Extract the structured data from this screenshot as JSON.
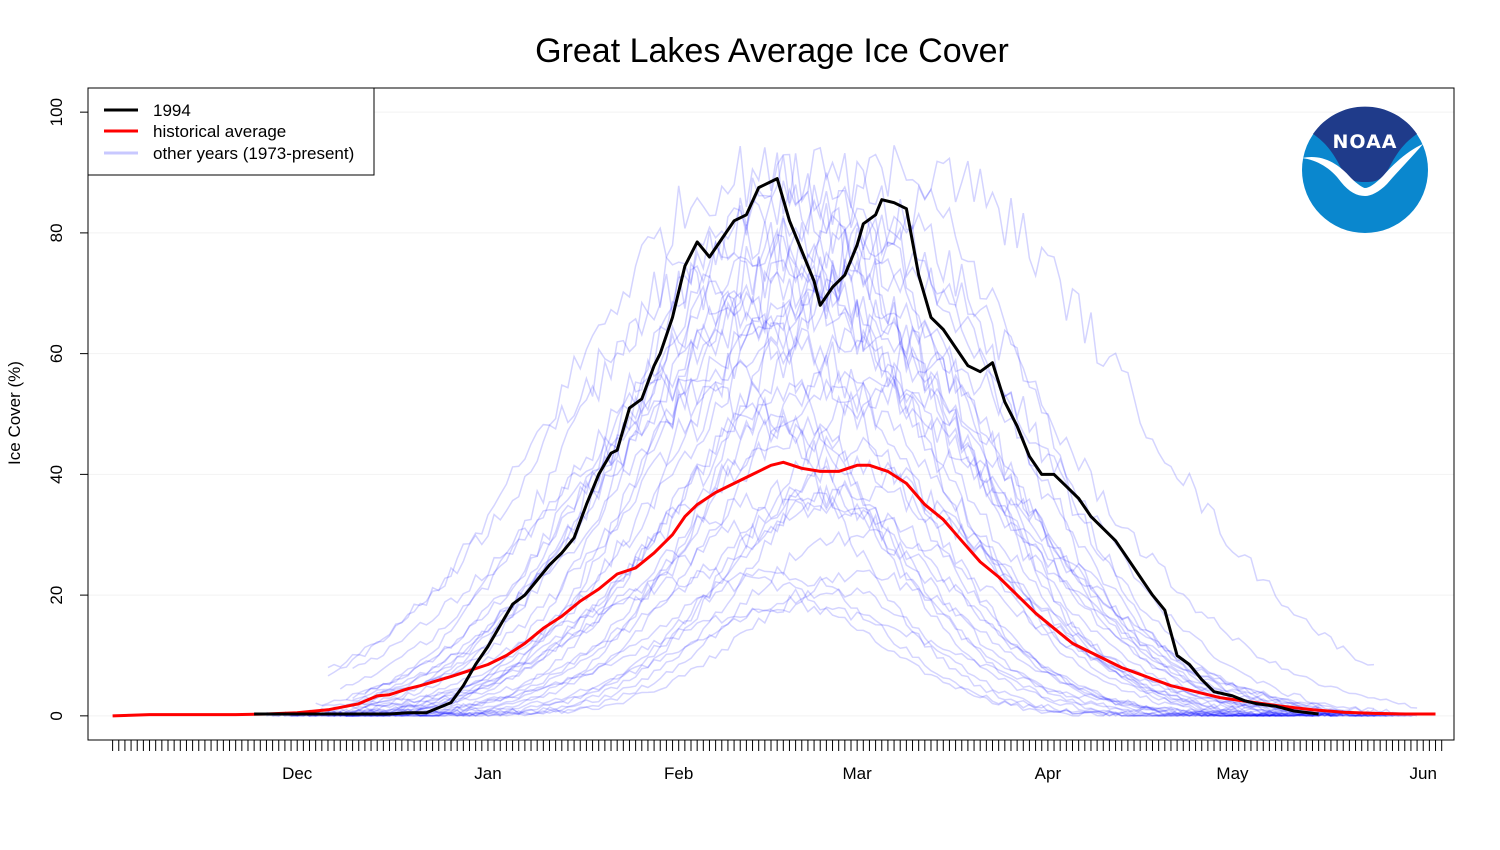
{
  "chart_data": {
    "type": "line",
    "title": "Great Lakes Average Ice Cover",
    "xlabel": "",
    "ylabel": "Ice Cover (%)",
    "x_unit": "days since Nov 1",
    "xlim": [
      -4,
      218
    ],
    "ylim": [
      -4,
      104
    ],
    "y_ticks": [
      0,
      20,
      40,
      60,
      80,
      100
    ],
    "x_ticks": [
      {
        "label": "Dec",
        "day": 30
      },
      {
        "label": "Jan",
        "day": 61
      },
      {
        "label": "Feb",
        "day": 92
      },
      {
        "label": "Mar",
        "day": 121
      },
      {
        "label": "Apr",
        "day": 152
      },
      {
        "label": "May",
        "day": 182
      },
      {
        "label": "Jun",
        "day": 213
      }
    ],
    "minor_tick_range": [
      0,
      216
    ],
    "grid": "horizontal",
    "legend": {
      "position": "top-left",
      "entries": [
        {
          "label": "1994",
          "color": "#000000"
        },
        {
          "label": "historical average",
          "color": "#ff0000"
        },
        {
          "label": "other years (1973-present)",
          "color": "#c8c8ff"
        }
      ]
    },
    "series": [
      {
        "name": "1994",
        "color": "#000000",
        "points": [
          [
            23,
            0.3
          ],
          [
            30,
            0.3
          ],
          [
            40,
            0.3
          ],
          [
            45,
            0.3
          ],
          [
            48,
            0.5
          ],
          [
            51,
            0.5
          ],
          [
            55,
            2.2
          ],
          [
            57,
            5
          ],
          [
            59,
            8.5
          ],
          [
            61,
            11.5
          ],
          [
            63,
            15
          ],
          [
            65,
            18.5
          ],
          [
            67,
            20
          ],
          [
            69,
            22.5
          ],
          [
            71,
            25
          ],
          [
            73,
            27
          ],
          [
            75,
            29.5
          ],
          [
            77,
            35
          ],
          [
            79,
            40
          ],
          [
            81,
            43.5
          ],
          [
            82,
            44
          ],
          [
            84,
            51
          ],
          [
            86,
            52.5
          ],
          [
            88,
            58
          ],
          [
            89,
            60
          ],
          [
            91,
            66
          ],
          [
            93,
            74.5
          ],
          [
            95,
            78.5
          ],
          [
            97,
            76
          ],
          [
            99,
            79
          ],
          [
            101,
            82
          ],
          [
            103,
            83
          ],
          [
            105,
            87.5
          ],
          [
            108,
            89
          ],
          [
            110,
            82
          ],
          [
            112,
            77
          ],
          [
            114,
            72
          ],
          [
            115,
            68
          ],
          [
            117,
            71
          ],
          [
            119,
            73
          ],
          [
            121,
            78
          ],
          [
            122,
            81.5
          ],
          [
            124,
            83
          ],
          [
            125,
            85.5
          ],
          [
            127,
            85
          ],
          [
            129,
            84
          ],
          [
            131,
            73
          ],
          [
            133,
            66
          ],
          [
            135,
            64
          ],
          [
            137,
            61
          ],
          [
            139,
            58
          ],
          [
            141,
            57
          ],
          [
            143,
            58.5
          ],
          [
            145,
            52
          ],
          [
            147,
            48
          ],
          [
            149,
            43
          ],
          [
            151,
            40
          ],
          [
            153,
            40
          ],
          [
            155,
            38
          ],
          [
            157,
            36
          ],
          [
            159,
            33
          ],
          [
            161,
            31
          ],
          [
            163,
            29
          ],
          [
            165,
            26
          ],
          [
            167,
            23
          ],
          [
            169,
            20
          ],
          [
            171,
            17.5
          ],
          [
            173,
            10
          ],
          [
            175,
            8.5
          ],
          [
            177,
            6
          ],
          [
            179,
            4
          ],
          [
            182,
            3.3
          ],
          [
            184,
            2.5
          ],
          [
            186,
            2
          ],
          [
            189,
            1.6
          ],
          [
            192,
            0.8
          ],
          [
            196,
            0.3
          ]
        ]
      },
      {
        "name": "historical average",
        "color": "#ff0000",
        "points": [
          [
            0,
            0
          ],
          [
            3,
            0.1
          ],
          [
            6,
            0.2
          ],
          [
            10,
            0.2
          ],
          [
            15,
            0.2
          ],
          [
            20,
            0.2
          ],
          [
            25,
            0.3
          ],
          [
            30,
            0.5
          ],
          [
            35,
            1
          ],
          [
            40,
            2
          ],
          [
            43,
            3.3
          ],
          [
            45,
            3.5
          ],
          [
            48,
            4.5
          ],
          [
            50,
            5
          ],
          [
            55,
            6.5
          ],
          [
            58,
            7.5
          ],
          [
            61,
            8.5
          ],
          [
            64,
            10
          ],
          [
            67,
            12
          ],
          [
            70,
            14.5
          ],
          [
            73,
            16.5
          ],
          [
            76,
            19
          ],
          [
            79,
            21
          ],
          [
            82,
            23.5
          ],
          [
            85,
            24.5
          ],
          [
            88,
            27
          ],
          [
            91,
            30
          ],
          [
            93,
            33
          ],
          [
            95,
            35
          ],
          [
            98,
            37
          ],
          [
            101,
            38.5
          ],
          [
            104,
            40
          ],
          [
            107,
            41.5
          ],
          [
            109,
            42
          ],
          [
            112,
            41
          ],
          [
            115,
            40.5
          ],
          [
            118,
            40.5
          ],
          [
            121,
            41.5
          ],
          [
            123,
            41.5
          ],
          [
            126,
            40.5
          ],
          [
            129,
            38.5
          ],
          [
            132,
            35
          ],
          [
            135,
            32.5
          ],
          [
            138,
            29
          ],
          [
            141,
            25.5
          ],
          [
            144,
            23
          ],
          [
            147,
            20
          ],
          [
            150,
            17
          ],
          [
            153,
            14.5
          ],
          [
            156,
            12
          ],
          [
            160,
            10
          ],
          [
            164,
            8
          ],
          [
            168,
            6.5
          ],
          [
            172,
            5
          ],
          [
            176,
            4
          ],
          [
            180,
            3
          ],
          [
            185,
            2.3
          ],
          [
            190,
            1.6
          ],
          [
            195,
            1
          ],
          [
            200,
            0.6
          ],
          [
            205,
            0.4
          ],
          [
            210,
            0.3
          ],
          [
            213,
            0.3
          ],
          [
            215,
            0.3
          ]
        ]
      }
    ],
    "other_years": {
      "label": "other years (1973-present)",
      "count": 40,
      "color": "#0000ff"
    }
  },
  "logo": {
    "text": "NOAA",
    "dark_color": "#1f3b8a",
    "light_color": "#0a87ce"
  }
}
